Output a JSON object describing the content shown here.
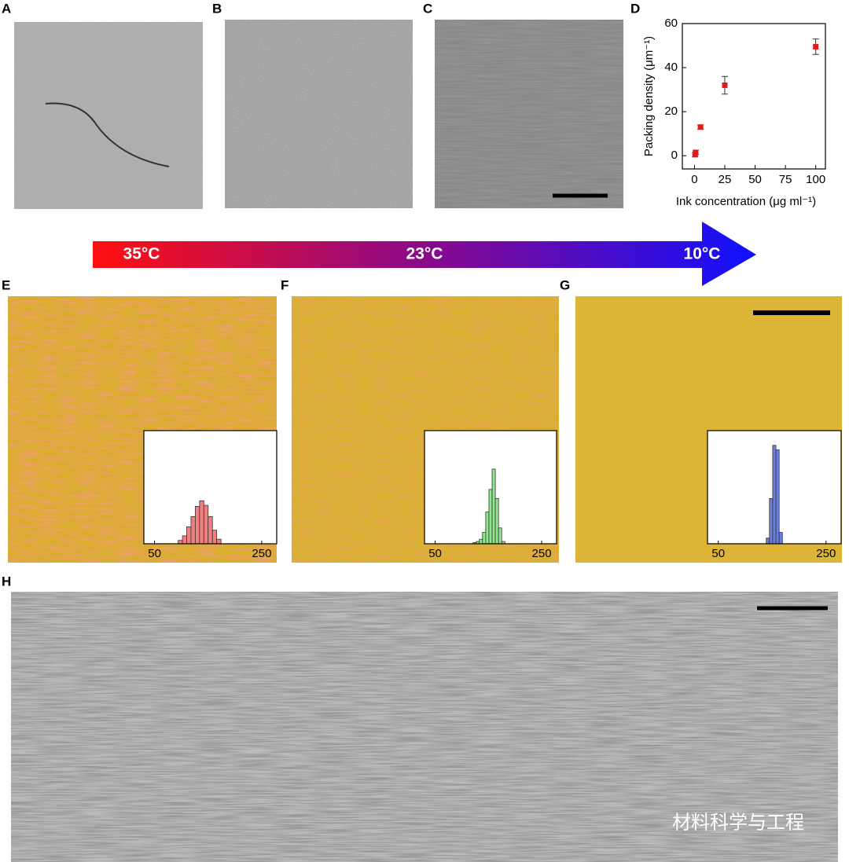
{
  "panel_labels": [
    "A",
    "B",
    "C",
    "D",
    "E",
    "F",
    "G",
    "H"
  ],
  "arrow_labels": [
    "35°C",
    "23°C",
    "10°C"
  ],
  "watermark": "材料科学与工程",
  "chart_data": [
    {
      "type": "scatter",
      "xlabel": "Ink concentration (μg ml⁻¹)",
      "ylabel": "Packing density (μm⁻¹)",
      "x": [
        0.5,
        1,
        5,
        25,
        100
      ],
      "values": [
        0.5,
        1.5,
        13,
        32,
        49.5
      ],
      "errors": [
        1,
        1,
        1,
        4,
        3.5
      ],
      "color": "#e31a1c",
      "xlim": [
        -10,
        108
      ],
      "ylim": [
        -6,
        60
      ],
      "xticks": [
        0,
        25,
        50,
        75,
        100
      ],
      "yticks": [
        0,
        20,
        40,
        60
      ]
    },
    {
      "type": "histogram",
      "bins": [
        94,
        102,
        110,
        118,
        126,
        134,
        142,
        150,
        158,
        166,
        174
      ],
      "values": [
        3,
        7,
        15,
        24,
        33,
        38,
        34,
        24,
        12,
        4
      ],
      "color": "#f08080",
      "xlim": [
        30,
        278
      ],
      "ylim": [
        0,
        100
      ],
      "xticks": [
        50,
        250
      ]
    },
    {
      "type": "histogram",
      "bins": [
        121,
        127,
        133,
        139,
        145,
        151,
        157,
        163,
        169,
        175,
        181
      ],
      "values": [
        1,
        2,
        4,
        10,
        28,
        48,
        66,
        40,
        14,
        2
      ],
      "color": "#8fe88f",
      "xlim": [
        30,
        278
      ],
      "ylim": [
        0,
        100
      ],
      "xticks": [
        50,
        250
      ]
    },
    {
      "type": "histogram",
      "bins": [
        139,
        145,
        151,
        157,
        163,
        169
      ],
      "values": [
        5,
        40,
        87,
        83,
        10
      ],
      "color": "#6a7fe0",
      "xlim": [
        30,
        278
      ],
      "ylim": [
        0,
        100
      ],
      "xticks": [
        50,
        250
      ]
    }
  ]
}
